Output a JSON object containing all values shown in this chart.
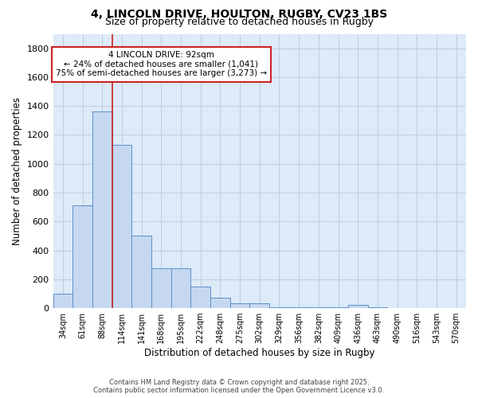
{
  "title_line1": "4, LINCOLN DRIVE, HOULTON, RUGBY, CV23 1BS",
  "title_line2": "Size of property relative to detached houses in Rugby",
  "xlabel": "Distribution of detached houses by size in Rugby",
  "ylabel": "Number of detached properties",
  "bar_labels": [
    "34sqm",
    "61sqm",
    "88sqm",
    "114sqm",
    "141sqm",
    "168sqm",
    "195sqm",
    "222sqm",
    "248sqm",
    "275sqm",
    "302sqm",
    "329sqm",
    "356sqm",
    "382sqm",
    "409sqm",
    "436sqm",
    "463sqm",
    "490sqm",
    "516sqm",
    "543sqm",
    "570sqm"
  ],
  "bar_values": [
    100,
    710,
    1360,
    1130,
    500,
    275,
    275,
    148,
    70,
    35,
    35,
    5,
    5,
    5,
    5,
    20,
    5,
    0,
    0,
    0,
    0
  ],
  "bar_color": "#c5d8f0",
  "bar_edge_color": "#5a90c8",
  "background_color": "#ddeaf8",
  "grid_color": "#b8c8dc",
  "red_line_index": 2,
  "annotation_text_line1": "4 LINCOLN DRIVE: 92sqm",
  "annotation_text_line2": "← 24% of detached houses are smaller (1,041)",
  "annotation_text_line3": "75% of semi-detached houses are larger (3,273) →",
  "annotation_box_color": "#ffffff",
  "annotation_border_color": "#cc2222",
  "ylim": [
    0,
    1900
  ],
  "yticks": [
    0,
    200,
    400,
    600,
    800,
    1000,
    1200,
    1400,
    1600,
    1800
  ],
  "footer_line1": "Contains HM Land Registry data © Crown copyright and database right 2025.",
  "footer_line2": "Contains public sector information licensed under the Open Government Licence v3.0."
}
